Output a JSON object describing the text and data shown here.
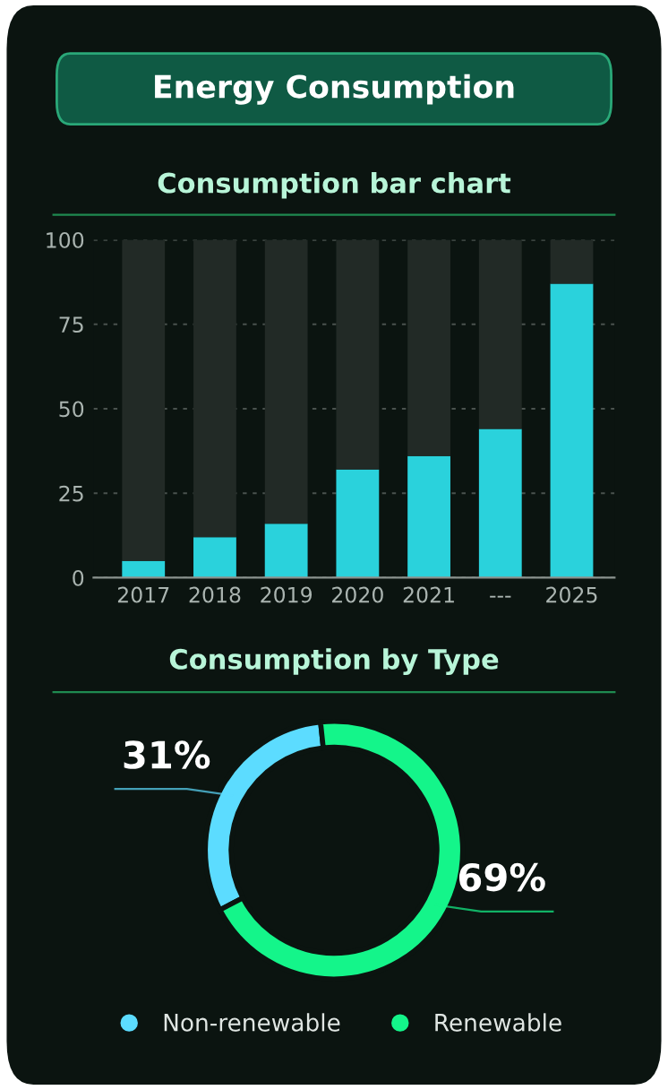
{
  "chart_data": [
    {
      "type": "bar",
      "title": "Energy Consumption",
      "subtitle": "Consumption bar chart",
      "categories": [
        "2017",
        "2018",
        "2019",
        "2020",
        "2021",
        "---",
        "2025"
      ],
      "stacked": true,
      "series": [
        {
          "color": "#2ad2dc",
          "values": [
            5,
            12,
            16,
            32,
            36,
            44,
            87
          ]
        },
        {
          "color": "#222a26",
          "values": [
            95,
            88,
            84,
            68,
            64,
            56,
            13
          ]
        }
      ],
      "ylim": [
        0,
        100
      ],
      "yticks": [
        0,
        25,
        50,
        75,
        100
      ],
      "grid": "y"
    },
    {
      "type": "donut",
      "title": "Consumption by Type",
      "categories": [
        "Non-renewable",
        "Renewable"
      ],
      "values": [
        31,
        69
      ],
      "colors": [
        "#5cdcff",
        "#14f58a"
      ],
      "value_labels": [
        "31%",
        "69%"
      ],
      "legend": "bottom"
    }
  ]
}
